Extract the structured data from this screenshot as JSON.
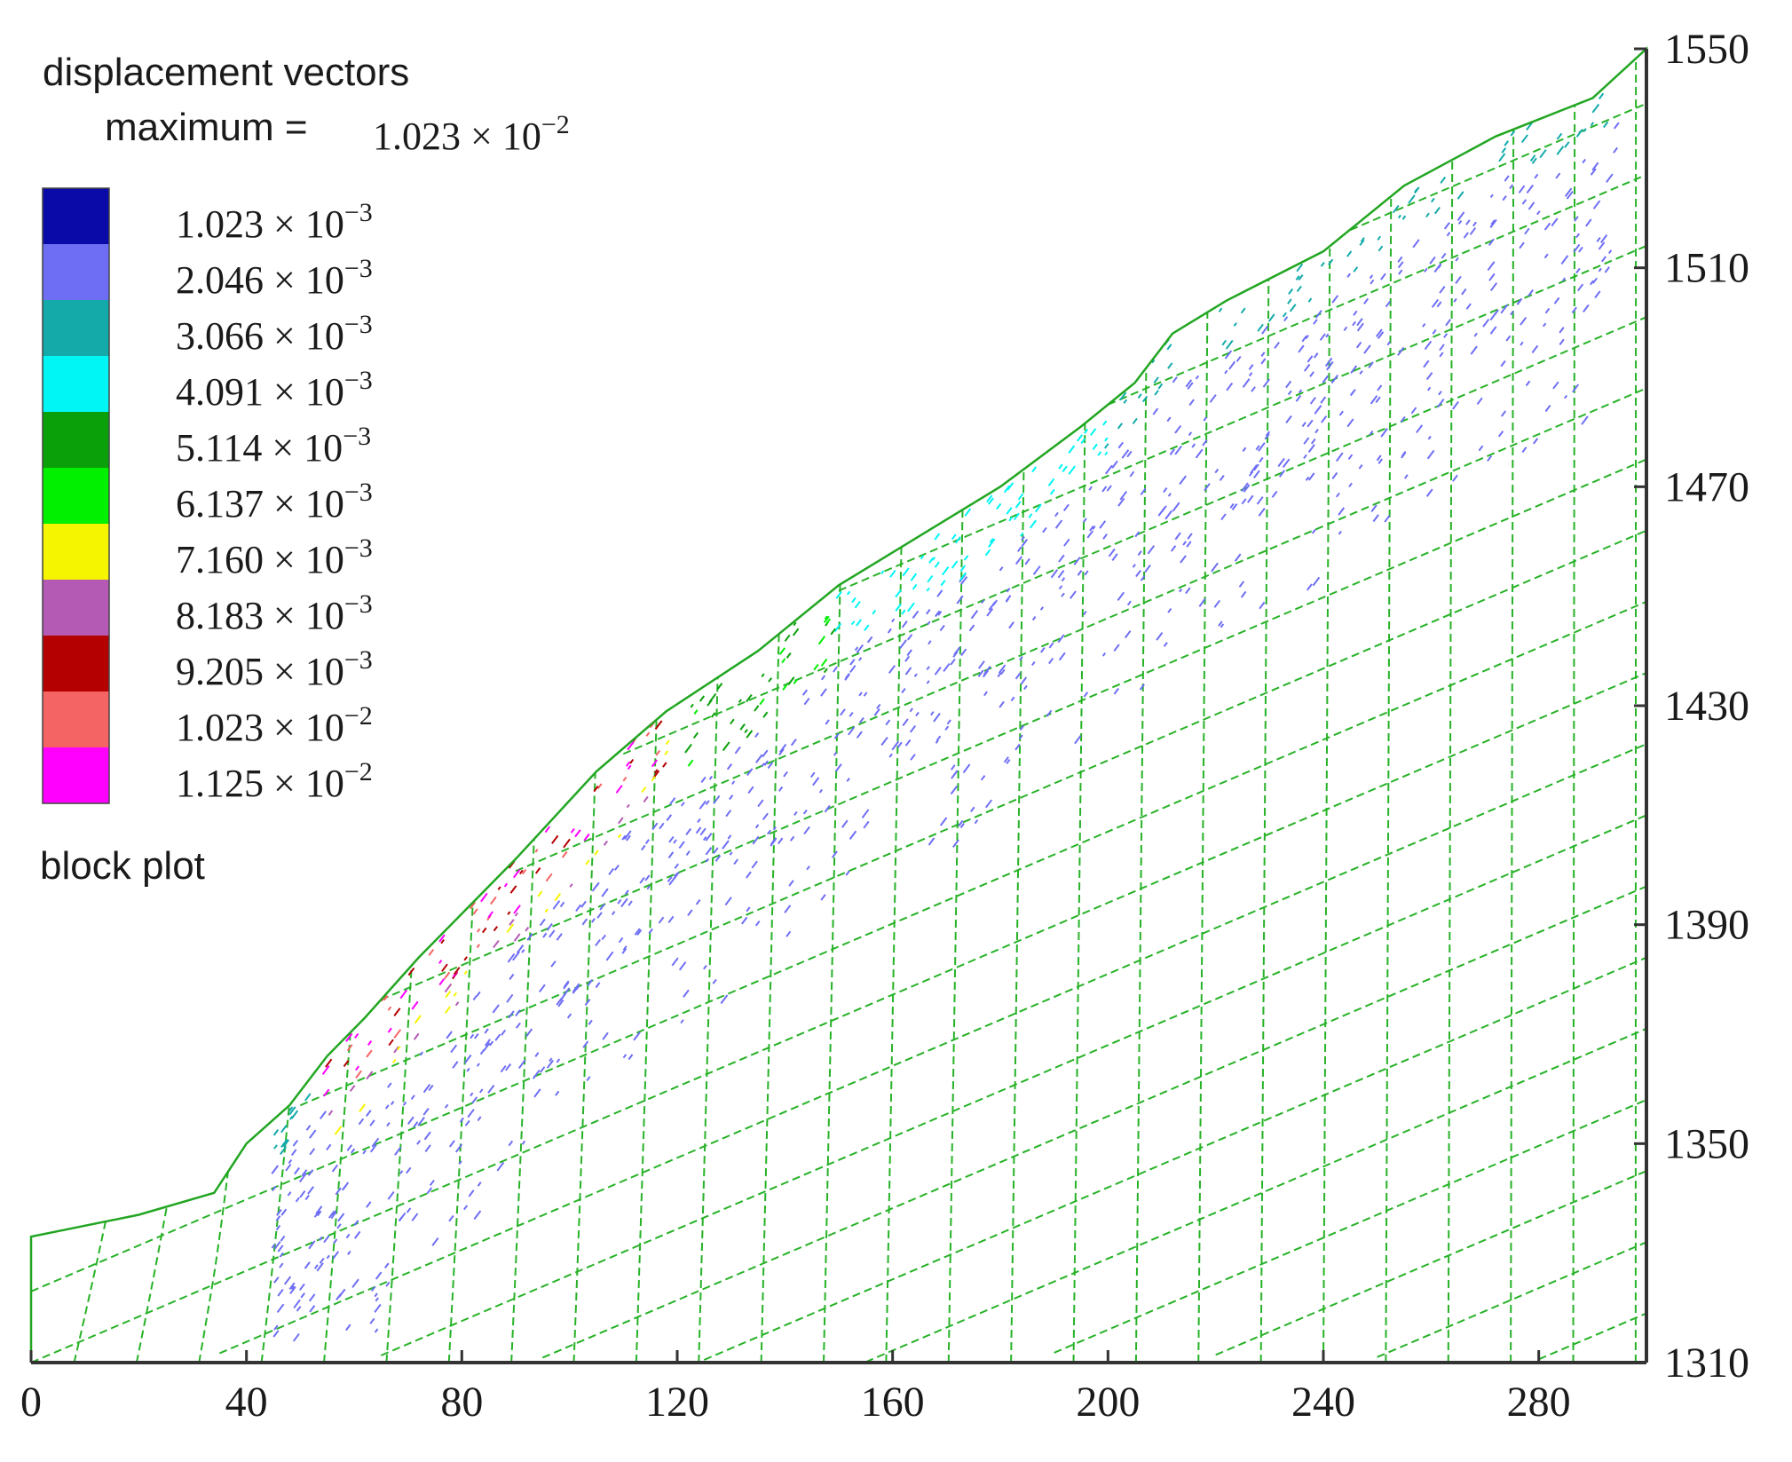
{
  "legend": {
    "title": "displacement vectors",
    "maximum_label": "maximum =",
    "maximum_value": {
      "mantissa": "1.023 × 10",
      "exponent": "−2"
    },
    "bins": [
      {
        "mantissa": "1.023 × 10",
        "exponent": "−3",
        "color": "#0a0aa8"
      },
      {
        "mantissa": "2.046 × 10",
        "exponent": "−3",
        "color": "#6e6ef5"
      },
      {
        "mantissa": "3.066 × 10",
        "exponent": "−3",
        "color": "#14aaaa"
      },
      {
        "mantissa": "4.091 × 10",
        "exponent": "−3",
        "color": "#00f5f5"
      },
      {
        "mantissa": "5.114 × 10",
        "exponent": "−3",
        "color": "#0aa00a"
      },
      {
        "mantissa": "6.137 × 10",
        "exponent": "−3",
        "color": "#00f000"
      },
      {
        "mantissa": "7.160 × 10",
        "exponent": "−3",
        "color": "#f5f500"
      },
      {
        "mantissa": "8.183 × 10",
        "exponent": "−3",
        "color": "#b45ab4"
      },
      {
        "mantissa": "9.205 × 10",
        "exponent": "−3",
        "color": "#b40000"
      },
      {
        "mantissa": "1.023 × 10",
        "exponent": "−2",
        "color": "#f56464"
      },
      {
        "mantissa": "1.125 × 10",
        "exponent": "−2",
        "color": "#ff00ff"
      }
    ],
    "block_plot_label": "block plot"
  },
  "axes": {
    "x_ticks": [
      "0",
      "40",
      "80",
      "120",
      "160",
      "200",
      "240",
      "280"
    ],
    "y_ticks": [
      "1310",
      "1350",
      "1390",
      "1430",
      "1470",
      "1510",
      "1550"
    ],
    "xlim": [
      0,
      300
    ],
    "ylim": [
      1310,
      1550
    ]
  },
  "slope_profile": [
    [
      0,
      1333
    ],
    [
      10,
      1335
    ],
    [
      20,
      1337
    ],
    [
      34,
      1341
    ],
    [
      40,
      1350
    ],
    [
      48,
      1357
    ],
    [
      55,
      1366
    ],
    [
      62,
      1373
    ],
    [
      72,
      1384
    ],
    [
      90,
      1402
    ],
    [
      105,
      1418
    ],
    [
      118,
      1429
    ],
    [
      135,
      1440
    ],
    [
      150,
      1452
    ],
    [
      165,
      1461
    ],
    [
      180,
      1470
    ],
    [
      195,
      1481
    ],
    [
      205,
      1489
    ],
    [
      212,
      1498
    ],
    [
      222,
      1504
    ],
    [
      240,
      1513
    ],
    [
      255,
      1525
    ],
    [
      272,
      1534
    ],
    [
      290,
      1541
    ],
    [
      300,
      1550
    ]
  ],
  "colors": {
    "mesh": "#27b227",
    "axis": "#333333"
  }
}
